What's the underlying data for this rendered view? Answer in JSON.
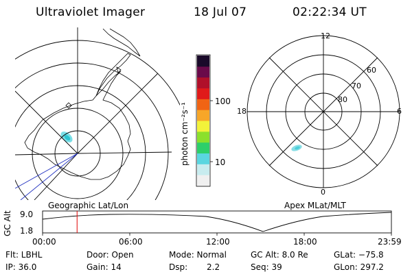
{
  "header": {
    "title": "Ultraviolet Imager",
    "date": "18 Jul 07",
    "time": "02:22:34 UT"
  },
  "geo_map": {
    "caption": "Geographic Lat/Lon"
  },
  "apex_map": {
    "caption": "Apex MLat/MLT",
    "mlt_labels": {
      "top": "12",
      "left": "18",
      "right": "6",
      "bottom": "0"
    },
    "lat_labels": [
      "60",
      "70",
      "80"
    ]
  },
  "colorbar": {
    "unit": "photon cm⁻²s⁻¹",
    "ticks": [
      "100",
      "10"
    ],
    "colors": [
      "#f0f0f0",
      "#c8ecef",
      "#5ad6e0",
      "#2ecf6a",
      "#8be02c",
      "#f2f23a",
      "#f7a628",
      "#f06414",
      "#e01a1a",
      "#b0102a",
      "#6a0a4a",
      "#1a0a2a"
    ]
  },
  "timeline": {
    "y_axis_label": "GC Alt",
    "y_ticks": [
      "9.0",
      "1.8"
    ],
    "x_ticks": [
      "00:00",
      "06:00",
      "12:00",
      "18:00",
      "23:59"
    ],
    "current_marker_fraction": 0.0989
  },
  "info": {
    "row1": {
      "flt": "Flt: LBHL",
      "door": "Door: Open",
      "mode": "Mode: Normal",
      "gc_alt": "GC Alt: 8.0 Re",
      "glat": "GLat: −75.8"
    },
    "row2": {
      "ip": "IP: 36.0",
      "gain": "Gain: 14",
      "dsp_label": "Dsp:",
      "dsp_value": "2.2",
      "seq": "Seq: 39",
      "glon": "GLon: 297.2"
    }
  }
}
